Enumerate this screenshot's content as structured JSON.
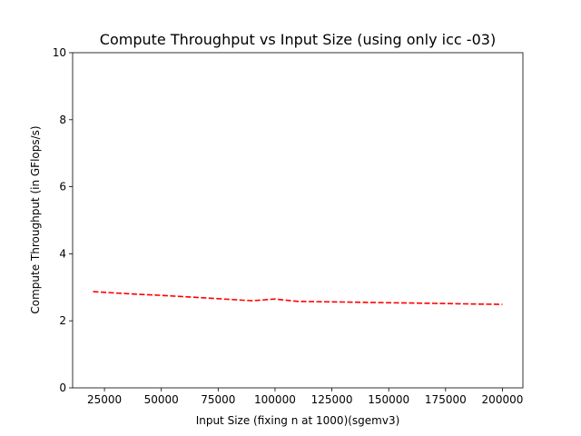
{
  "chart_data": {
    "type": "line",
    "title": "Compute Throughput vs Input Size (using only icc -03)",
    "xlabel": "Input Size (fixing n at 1000)(sgemv3)",
    "ylabel": "Compute Throughput (in GFlops/s)",
    "xlim": [
      11000,
      209000
    ],
    "ylim": [
      0,
      10
    ],
    "xticks": [
      25000,
      50000,
      75000,
      100000,
      125000,
      150000,
      175000,
      200000
    ],
    "xtick_labels": [
      "25000",
      "50000",
      "75000",
      "100000",
      "125000",
      "150000",
      "175000",
      "200000"
    ],
    "yticks": [
      0,
      2,
      4,
      6,
      8,
      10
    ],
    "ytick_labels": [
      "0",
      "2",
      "4",
      "6",
      "8",
      "10"
    ],
    "grid": false,
    "series": [
      {
        "color": "#ff0000",
        "line_style": "dashed",
        "x": [
          20000,
          30000,
          40000,
          50000,
          60000,
          70000,
          80000,
          90000,
          100000,
          110000,
          120000,
          130000,
          140000,
          150000,
          160000,
          170000,
          180000,
          190000,
          200000
        ],
        "y": [
          2.87,
          2.83,
          2.79,
          2.76,
          2.72,
          2.68,
          2.64,
          2.6,
          2.65,
          2.58,
          2.57,
          2.56,
          2.55,
          2.54,
          2.53,
          2.52,
          2.51,
          2.5,
          2.49
        ]
      }
    ]
  }
}
